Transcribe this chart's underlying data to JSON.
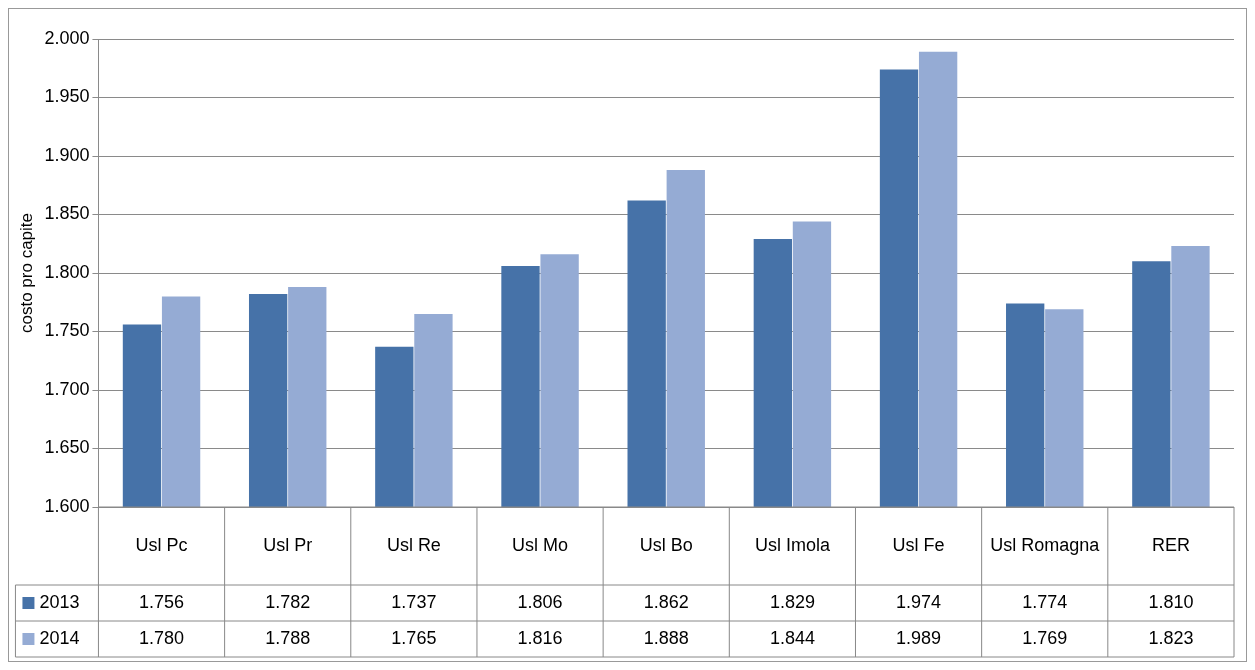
{
  "chart_data": {
    "type": "bar",
    "ylabel": "costo pro capite",
    "categories": [
      "Usl Pc",
      "Usl Pr",
      "Usl Re",
      "Usl Mo",
      "Usl Bo",
      "Usl Imola",
      "Usl Fe",
      "Usl Romagna",
      "RER"
    ],
    "series": [
      {
        "name": "2013",
        "color": "#4672a8",
        "values": [
          1756,
          1782,
          1737,
          1806,
          1862,
          1829,
          1974,
          1774,
          1810
        ],
        "value_labels": [
          "1.756",
          "1.782",
          "1.737",
          "1.806",
          "1.862",
          "1.829",
          "1.974",
          "1.774",
          "1.810"
        ]
      },
      {
        "name": "2014",
        "color": "#95abd4",
        "values": [
          1780,
          1788,
          1765,
          1816,
          1888,
          1844,
          1989,
          1769,
          1823
        ],
        "value_labels": [
          "1.780",
          "1.788",
          "1.765",
          "1.816",
          "1.888",
          "1.844",
          "1.989",
          "1.769",
          "1.823"
        ]
      }
    ],
    "ylim": [
      1600,
      2000
    ],
    "yticks": [
      {
        "value": 1600,
        "label": "1.600"
      },
      {
        "value": 1650,
        "label": "1.650"
      },
      {
        "value": 1700,
        "label": "1.700"
      },
      {
        "value": 1750,
        "label": "1.750"
      },
      {
        "value": 1800,
        "label": "1.800"
      },
      {
        "value": 1850,
        "label": "1.850"
      },
      {
        "value": 1900,
        "label": "1.900"
      },
      {
        "value": 1950,
        "label": "1.950"
      },
      {
        "value": 2000,
        "label": "2.000"
      }
    ],
    "grid": "y",
    "legend": "bottom"
  }
}
